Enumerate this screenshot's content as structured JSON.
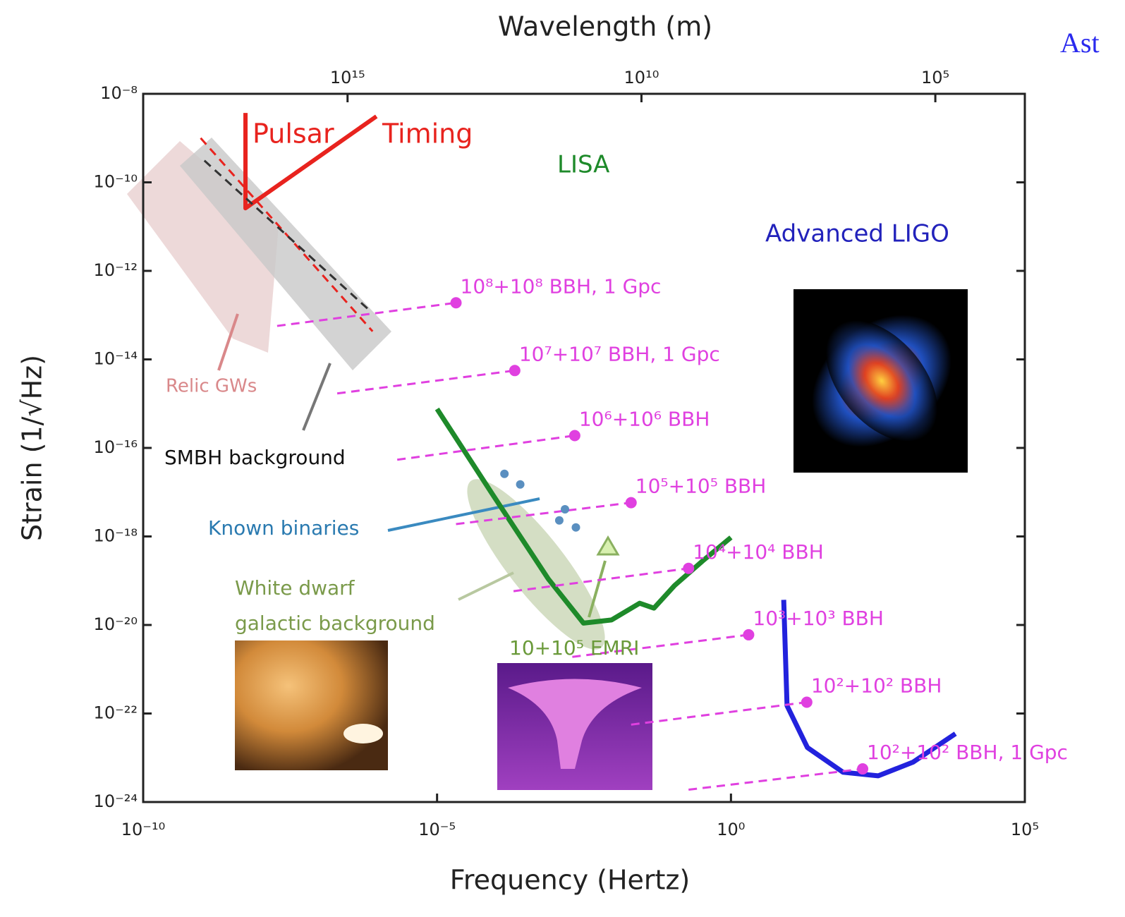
{
  "chart_data": {
    "type": "line",
    "xscale": "log",
    "yscale": "log",
    "x_label": "Frequency (Hertz)",
    "x2_label": "Wavelength (m)",
    "y_label": "Strain (1/√Hz)",
    "corner_text": "Ast",
    "xlim": [
      1e-10,
      100000.0
    ],
    "xticks": [
      {
        "value": 1e-10,
        "label": "10⁻¹⁰"
      },
      {
        "value": 1e-05,
        "label": "10⁻⁵"
      },
      {
        "value": 1,
        "label": "10⁰"
      },
      {
        "value": 100000.0,
        "label": "10⁵"
      }
    ],
    "x2lim": [
      3e+18,
      3000
    ],
    "x2ticks": [
      {
        "value": 1000000000000000.0,
        "label": "10¹⁵"
      },
      {
        "value": 10000000000.0,
        "label": "10¹⁰"
      },
      {
        "value": 100000.0,
        "label": "10⁵"
      }
    ],
    "ylim": [
      1e-24,
      1e-08
    ],
    "yticks": [
      {
        "value": 1e-08,
        "label": "10⁻⁸"
      },
      {
        "value": 1e-10,
        "label": "10⁻¹⁰"
      },
      {
        "value": 1e-12,
        "label": "10⁻¹²"
      },
      {
        "value": 1e-14,
        "label": "10⁻¹⁴"
      },
      {
        "value": 1e-16,
        "label": "10⁻¹⁶"
      },
      {
        "value": 1e-18,
        "label": "10⁻¹⁸"
      },
      {
        "value": 1e-20,
        "label": "10⁻²⁰"
      },
      {
        "value": 1e-22,
        "label": "10⁻²²"
      },
      {
        "value": 1e-24,
        "label": "10⁻²⁴"
      }
    ],
    "series": [
      {
        "color": "#e8231e",
        "width": 6,
        "x": [
          5.5e-09,
          5.5e-09,
          9.3e-07
        ],
        "y": [
          3.7e-09,
          2.6e-11,
          3.1e-09
        ]
      },
      {
        "color": "#e8231e",
        "width": 3,
        "dash": true,
        "x": [
          9.5e-10,
          8e-07
        ],
        "y": [
          1e-09,
          4.3e-14
        ]
      },
      {
        "color": "#333333",
        "width": 3,
        "dash": true,
        "x": [
          1.1e-09,
          7e-07
        ],
        "y": [
          3.1e-10,
          1.3e-13
        ]
      },
      {
        "color": "#1e8a2a",
        "width": 7,
        "x": [
          1e-05,
          8.7e-05,
          0.00078,
          0.0031,
          0.0093,
          0.028,
          0.049,
          0.11,
          0.33,
          1
        ],
        "y": [
          7.6e-16,
          9.1e-18,
          1.1e-19,
          1.1e-20,
          1.3e-20,
          3.1e-20,
          2.4e-20,
          7.8e-20,
          2.8e-19,
          9.5e-19
        ]
      },
      {
        "color": "#2222dd",
        "width": 7,
        "x": [
          7.9,
          9,
          20,
          81,
          320,
          1260,
          6600
        ],
        "y": [
          3.7e-20,
          1.5e-22,
          1.7e-23,
          4.7e-24,
          3.9e-24,
          8e-24,
          3.5e-23
        ]
      },
      {
        "name": "10⁸+10⁸ BBH, 1 Gpc",
        "color": "#e040e0",
        "width": 3,
        "dash": true,
        "marker": "end",
        "x": [
          1.9e-08,
          2.1e-05
        ],
        "y": [
          5.7e-14,
          1.9e-13
        ]
      },
      {
        "name": "10⁷+10⁷ BBH, 1 Gpc",
        "color": "#e040e0",
        "width": 3,
        "dash": true,
        "marker": "end",
        "x": [
          2e-07,
          0.00021
        ],
        "y": [
          1.7e-15,
          5.6e-15
        ]
      },
      {
        "name": "10⁶+10⁶ BBH",
        "color": "#e040e0",
        "width": 3,
        "dash": true,
        "marker": "end",
        "x": [
          2.1e-06,
          0.0022
        ],
        "y": [
          5.4e-17,
          1.9e-16
        ]
      },
      {
        "name": "10⁵+10⁵ BBH",
        "color": "#e040e0",
        "width": 3,
        "dash": true,
        "marker": "end",
        "x": [
          2.1e-05,
          0.02
        ],
        "y": [
          1.9e-18,
          5.8e-18
        ]
      },
      {
        "name": "10⁴+10⁴ BBH",
        "color": "#e040e0",
        "width": 3,
        "dash": true,
        "marker": "end",
        "x": [
          0.0002,
          0.19
        ],
        "y": [
          5.8e-20,
          1.9e-19
        ]
      },
      {
        "name": "10³+10³ BBH",
        "color": "#e040e0",
        "width": 3,
        "dash": true,
        "marker": "end",
        "x": [
          0.002,
          2
        ],
        "y": [
          1.9e-21,
          6e-21
        ]
      },
      {
        "name": "10²+10² BBH",
        "color": "#e040e0",
        "width": 3,
        "dash": true,
        "marker": "end",
        "x": [
          0.02,
          19.5
        ],
        "y": [
          5.6e-23,
          1.8e-22
        ]
      },
      {
        "name": "10²+10² BBH, 1 Gpc",
        "color": "#e040e0",
        "width": 3,
        "dash": true,
        "marker": "end",
        "x": [
          0.19,
          174
        ],
        "y": [
          1.9e-24,
          5.6e-24
        ]
      },
      {
        "color": "#5a8fc0",
        "marker": "dots",
        "x": [
          0.00014,
          0.00026,
          0.0015,
          0.0012,
          0.0023
        ],
        "y": [
          2.6e-17,
          1.5e-17,
          4.1e-18,
          2.3e-18,
          1.6e-18
        ]
      }
    ],
    "annotations": [
      {
        "text": "Pulsar",
        "color": "#e8231e"
      },
      {
        "text": "Timing",
        "color": "#e8231e"
      },
      {
        "text": "LISA",
        "color": "#1e8a2a"
      },
      {
        "text": "Advanced LIGO",
        "color": "#2222bb"
      },
      {
        "text": "Relic GWs",
        "color": "#d9888a"
      },
      {
        "text": "SMBH background",
        "color": "#111111"
      },
      {
        "text": "Known binaries",
        "color": "#2a7ab0"
      },
      {
        "text": "White dwarf",
        "color": "#7a9a4a"
      },
      {
        "text": "galactic background",
        "color": "#7a9a4a"
      },
      {
        "text": "10+10⁵ EMRI",
        "color": "#6a9a3a"
      }
    ]
  }
}
